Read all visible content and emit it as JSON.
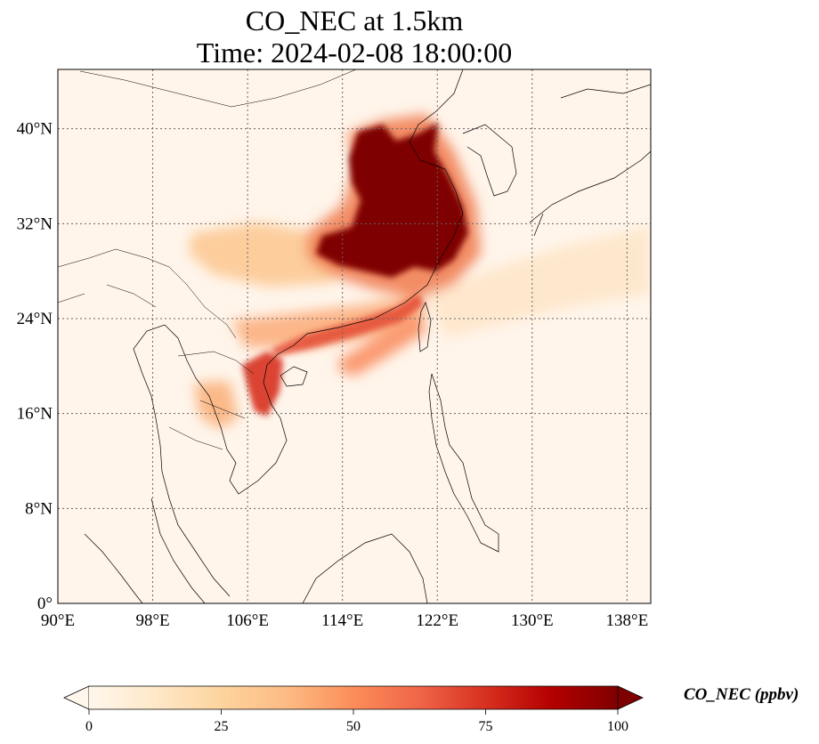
{
  "title_line1": "CO_NEC at 1.5km",
  "title_line2": "Time: 2024-02-08 18:00:00",
  "map": {
    "extent": {
      "lon_min": 90,
      "lon_max": 140,
      "lat_min": 0,
      "lat_max": 45
    },
    "lon_ticks": [
      90,
      98,
      106,
      114,
      122,
      130,
      138
    ],
    "lat_ticks": [
      0,
      8,
      16,
      24,
      32,
      40
    ],
    "lon_tick_labels": [
      "90°E",
      "98°E",
      "106°E",
      "114°E",
      "122°E",
      "130°E",
      "138°E"
    ],
    "lat_tick_labels": [
      "0°",
      "8°N",
      "16°N",
      "24°N",
      "32°N",
      "40°N"
    ],
    "gridlines": true,
    "background_color": "#fff5eb",
    "coastline_color": "#000000"
  },
  "colorbar": {
    "colormap": "OrRd",
    "min": 0,
    "max": 100,
    "ticks": [
      0,
      25,
      50,
      75,
      100
    ],
    "tick_labels": [
      "0",
      "25",
      "50",
      "75",
      "100"
    ],
    "extend": "both",
    "label": "CO_NEC (ppbv)",
    "colors": [
      "#fff7ec",
      "#fee8c8",
      "#fdd49e",
      "#fdbb84",
      "#fc8d59",
      "#ef6548",
      "#d7301f",
      "#b30000",
      "#7f0000"
    ]
  }
}
